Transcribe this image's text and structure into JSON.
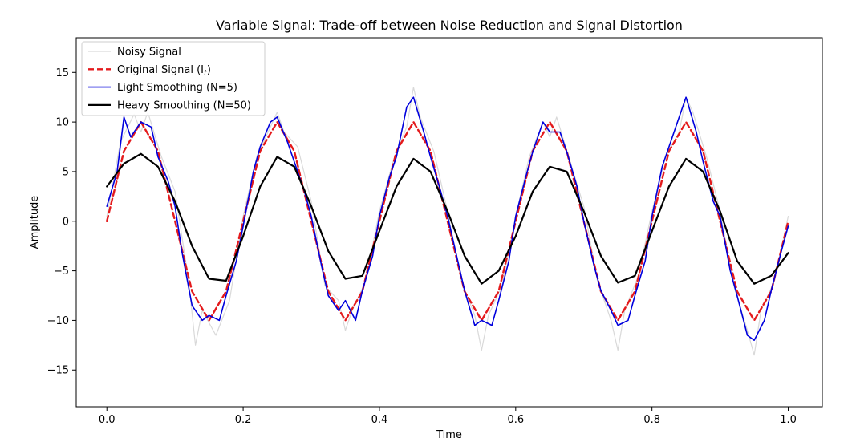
{
  "chart_data": {
    "type": "line",
    "title": "Variable Signal: Trade-off between Noise Reduction and Signal Distortion",
    "xlabel": "Time",
    "ylabel": "Amplitude",
    "xlim": [
      -0.045,
      1.05
    ],
    "ylim": [
      -18.7,
      18.5
    ],
    "xticks": [
      0.0,
      0.2,
      0.4,
      0.6,
      0.8,
      1.0
    ],
    "xtick_labels": [
      "0.0",
      "0.2",
      "0.4",
      "0.6",
      "0.8",
      "1.0"
    ],
    "yticks": [
      -15,
      -10,
      -5,
      0,
      5,
      10,
      15
    ],
    "ytick_labels": [
      "−15",
      "−10",
      "−5",
      "0",
      "5",
      "10",
      "15"
    ],
    "grid": false,
    "legend_position": "upper-left",
    "series": [
      {
        "name": "Noisy Signal",
        "color": "#d9d9d9",
        "style": "solid",
        "x": [
          0.0,
          0.02,
          0.04,
          0.05,
          0.06,
          0.08,
          0.1,
          0.12,
          0.13,
          0.14,
          0.16,
          0.18,
          0.2,
          0.22,
          0.24,
          0.25,
          0.26,
          0.28,
          0.3,
          0.32,
          0.34,
          0.35,
          0.36,
          0.38,
          0.4,
          0.42,
          0.44,
          0.45,
          0.46,
          0.48,
          0.5,
          0.52,
          0.54,
          0.55,
          0.56,
          0.58,
          0.6,
          0.62,
          0.64,
          0.65,
          0.66,
          0.68,
          0.7,
          0.72,
          0.74,
          0.75,
          0.76,
          0.78,
          0.8,
          0.82,
          0.84,
          0.85,
          0.86,
          0.88,
          0.9,
          0.92,
          0.94,
          0.95,
          0.96,
          0.98,
          1.0
        ],
        "y": [
          0.5,
          8.0,
          10.8,
          9.0,
          11.0,
          6.5,
          3.0,
          -6.0,
          -12.5,
          -9.0,
          -11.5,
          -8.0,
          0.5,
          6.5,
          9.5,
          11.0,
          9.0,
          7.5,
          2.0,
          -6.5,
          -8.0,
          -11.0,
          -9.0,
          -6.0,
          1.0,
          6.0,
          9.5,
          13.5,
          10.5,
          7.0,
          1.0,
          -6.0,
          -9.5,
          -13.0,
          -9.5,
          -6.5,
          0.5,
          6.5,
          10.0,
          8.5,
          10.5,
          6.0,
          1.5,
          -6.0,
          -10.0,
          -13.0,
          -9.0,
          -5.5,
          1.0,
          6.5,
          9.0,
          12.5,
          11.0,
          6.5,
          1.0,
          -6.5,
          -11.0,
          -13.5,
          -9.0,
          -6.0,
          0.5
        ]
      },
      {
        "name": "Original Signal ($I_t$)",
        "legend_label": "Original Signal (I",
        "legend_sub": "t",
        "legend_tail": ")",
        "color": "#e41a1c",
        "style": "dashed",
        "x": [
          0.0,
          0.025,
          0.05,
          0.075,
          0.1,
          0.125,
          0.15,
          0.175,
          0.2,
          0.225,
          0.25,
          0.275,
          0.3,
          0.325,
          0.35,
          0.375,
          0.4,
          0.425,
          0.45,
          0.475,
          0.5,
          0.525,
          0.55,
          0.575,
          0.6,
          0.625,
          0.65,
          0.675,
          0.7,
          0.725,
          0.75,
          0.775,
          0.8,
          0.825,
          0.85,
          0.875,
          0.9,
          0.925,
          0.95,
          0.975,
          1.0
        ],
        "y": [
          0.0,
          7.07,
          10.0,
          7.07,
          0.0,
          -7.07,
          -10.0,
          -7.07,
          0.0,
          7.07,
          10.0,
          7.07,
          0.0,
          -7.07,
          -10.0,
          -7.07,
          0.0,
          7.07,
          10.0,
          7.07,
          0.0,
          -7.07,
          -10.0,
          -7.07,
          0.0,
          7.07,
          10.0,
          7.07,
          0.0,
          -7.07,
          -10.0,
          -7.07,
          0.0,
          7.07,
          10.0,
          7.07,
          0.0,
          -7.07,
          -10.0,
          -7.07,
          0.0
        ]
      },
      {
        "name": "Light Smoothing (N=5)",
        "color": "#0000dd",
        "style": "solid",
        "x": [
          0.0,
          0.015,
          0.025,
          0.035,
          0.05,
          0.065,
          0.075,
          0.09,
          0.1,
          0.11,
          0.125,
          0.14,
          0.15,
          0.165,
          0.175,
          0.19,
          0.2,
          0.215,
          0.225,
          0.24,
          0.25,
          0.265,
          0.275,
          0.29,
          0.3,
          0.315,
          0.325,
          0.34,
          0.35,
          0.365,
          0.375,
          0.39,
          0.4,
          0.415,
          0.425,
          0.44,
          0.45,
          0.465,
          0.475,
          0.49,
          0.5,
          0.515,
          0.525,
          0.54,
          0.55,
          0.565,
          0.575,
          0.59,
          0.6,
          0.615,
          0.625,
          0.64,
          0.65,
          0.665,
          0.675,
          0.69,
          0.7,
          0.715,
          0.725,
          0.74,
          0.75,
          0.765,
          0.775,
          0.79,
          0.8,
          0.815,
          0.825,
          0.84,
          0.85,
          0.865,
          0.875,
          0.89,
          0.9,
          0.915,
          0.925,
          0.94,
          0.95,
          0.965,
          0.975,
          0.99,
          1.0
        ],
        "y": [
          1.5,
          5.0,
          10.5,
          8.5,
          10.0,
          9.5,
          6.5,
          4.0,
          1.5,
          -3.0,
          -8.5,
          -10.0,
          -9.5,
          -10.0,
          -7.5,
          -4.0,
          -0.5,
          5.0,
          7.5,
          10.0,
          10.5,
          8.0,
          6.0,
          3.0,
          0.5,
          -4.5,
          -7.5,
          -9.0,
          -8.0,
          -10.0,
          -7.0,
          -3.5,
          0.5,
          4.5,
          6.5,
          11.5,
          12.5,
          9.0,
          6.5,
          3.0,
          0.5,
          -4.0,
          -7.0,
          -10.5,
          -10.0,
          -10.5,
          -8.0,
          -4.0,
          0.5,
          4.5,
          7.0,
          10.0,
          9.0,
          9.0,
          7.0,
          3.5,
          0.0,
          -4.5,
          -7.0,
          -9.0,
          -10.5,
          -10.0,
          -7.5,
          -4.0,
          0.5,
          5.5,
          7.5,
          10.5,
          12.5,
          9.0,
          6.0,
          2.0,
          0.5,
          -5.0,
          -7.5,
          -11.5,
          -12.0,
          -10.0,
          -7.0,
          -3.0,
          -0.5
        ]
      },
      {
        "name": "Heavy Smoothing (N=50)",
        "color": "#000000",
        "style": "solid",
        "x": [
          0.0,
          0.025,
          0.05,
          0.075,
          0.1,
          0.125,
          0.15,
          0.175,
          0.2,
          0.225,
          0.25,
          0.275,
          0.3,
          0.325,
          0.35,
          0.375,
          0.4,
          0.425,
          0.45,
          0.475,
          0.5,
          0.525,
          0.55,
          0.575,
          0.6,
          0.625,
          0.65,
          0.675,
          0.7,
          0.725,
          0.75,
          0.775,
          0.8,
          0.825,
          0.85,
          0.875,
          0.9,
          0.925,
          0.95,
          0.975,
          1.0
        ],
        "y": [
          3.5,
          5.8,
          6.8,
          5.5,
          2.0,
          -2.5,
          -5.8,
          -6.0,
          -1.5,
          3.5,
          6.5,
          5.5,
          1.5,
          -3.0,
          -5.8,
          -5.5,
          -1.0,
          3.5,
          6.3,
          5.0,
          1.0,
          -3.5,
          -6.3,
          -5.0,
          -1.5,
          3.0,
          5.5,
          5.0,
          1.0,
          -3.5,
          -6.2,
          -5.5,
          -1.0,
          3.5,
          6.3,
          5.0,
          1.0,
          -4.0,
          -6.3,
          -5.5,
          -3.2
        ]
      }
    ]
  }
}
